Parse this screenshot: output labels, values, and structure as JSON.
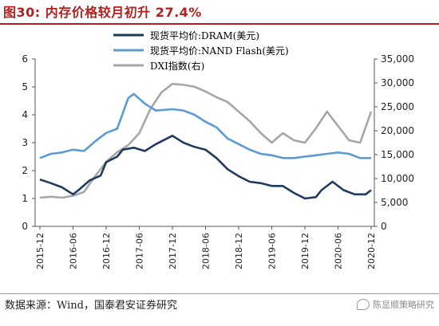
{
  "title": "图30: 内存价格较月初升 27.4%",
  "source": "数据来源：Wind，国泰君安证券研究",
  "watermark": "陈显顺策略研究",
  "chart_data": {
    "type": "line",
    "x_ticks": [
      "2015-12",
      "2016-06",
      "2016-12",
      "2017-06",
      "2017-12",
      "2018-06",
      "2018-12",
      "2019-06",
      "2019-12",
      "2020-06",
      "2020-12"
    ],
    "ylim_left": [
      0,
      6
    ],
    "yticks_left": [
      0,
      1,
      2,
      3,
      4,
      5,
      6
    ],
    "ylim_right": [
      0,
      35000
    ],
    "yticks_right": [
      "0",
      "5,000",
      "10,000",
      "15,000",
      "20,000",
      "25,000",
      "30,000",
      "35,000"
    ],
    "yticks_right_values": [
      0,
      5000,
      10000,
      15000,
      20000,
      25000,
      30000,
      35000
    ],
    "grid": false,
    "legend_position": "top-center",
    "series": [
      {
        "name": "现货平均价:DRAM(美元)",
        "axis": "left",
        "color": "#1f3a5f",
        "x": [
          "2015-12",
          "2016-02",
          "2016-04",
          "2016-06",
          "2016-07",
          "2016-09",
          "2016-11",
          "2016-12",
          "2017-02",
          "2017-03",
          "2017-05",
          "2017-07",
          "2017-09",
          "2017-10",
          "2017-12",
          "2018-02",
          "2018-04",
          "2018-06",
          "2018-08",
          "2018-10",
          "2018-12",
          "2019-02",
          "2019-04",
          "2019-06",
          "2019-08",
          "2019-10",
          "2019-12",
          "2020-02",
          "2020-03",
          "2020-05",
          "2020-07",
          "2020-09",
          "2020-11",
          "2020-12"
        ],
        "values": [
          1.68,
          1.55,
          1.4,
          1.15,
          1.3,
          1.65,
          1.82,
          2.3,
          2.5,
          2.75,
          2.82,
          2.7,
          2.95,
          3.05,
          3.25,
          3.0,
          2.85,
          2.75,
          2.45,
          2.05,
          1.8,
          1.6,
          1.55,
          1.45,
          1.45,
          1.2,
          1.0,
          1.05,
          1.3,
          1.6,
          1.3,
          1.15,
          1.15,
          1.3
        ]
      },
      {
        "name": "现货平均价:NAND Flash(美元)",
        "axis": "left",
        "color": "#5b9bd5",
        "x": [
          "2015-12",
          "2016-02",
          "2016-04",
          "2016-06",
          "2016-08",
          "2016-10",
          "2016-12",
          "2017-02",
          "2017-04",
          "2017-05",
          "2017-07",
          "2017-09",
          "2017-12",
          "2018-02",
          "2018-04",
          "2018-06",
          "2018-08",
          "2018-10",
          "2018-12",
          "2019-02",
          "2019-04",
          "2019-06",
          "2019-08",
          "2019-10",
          "2019-12",
          "2020-02",
          "2020-04",
          "2020-06",
          "2020-08",
          "2020-10",
          "2020-12"
        ],
        "values": [
          2.45,
          2.6,
          2.65,
          2.75,
          2.7,
          3.05,
          3.35,
          3.5,
          4.6,
          4.75,
          4.4,
          4.15,
          4.2,
          4.15,
          4.0,
          3.75,
          3.55,
          3.15,
          2.95,
          2.75,
          2.6,
          2.55,
          2.45,
          2.45,
          2.5,
          2.55,
          2.6,
          2.65,
          2.6,
          2.45,
          2.45
        ]
      },
      {
        "name": "DXI指数(右)",
        "axis": "right",
        "color": "#a6a6a6",
        "x": [
          "2015-12",
          "2016-02",
          "2016-04",
          "2016-06",
          "2016-08",
          "2016-10",
          "2016-12",
          "2017-02",
          "2017-04",
          "2017-06",
          "2017-08",
          "2017-10",
          "2017-12",
          "2018-02",
          "2018-04",
          "2018-06",
          "2018-08",
          "2018-10",
          "2018-12",
          "2019-02",
          "2019-04",
          "2019-06",
          "2019-08",
          "2019-10",
          "2019-12",
          "2020-02",
          "2020-04",
          "2020-06",
          "2020-08",
          "2020-10",
          "2020-12"
        ],
        "values": [
          6000,
          6200,
          6000,
          6400,
          7200,
          10500,
          13500,
          15500,
          17000,
          19500,
          24500,
          28000,
          29800,
          29600,
          29200,
          28200,
          27000,
          26000,
          24000,
          22000,
          19500,
          17500,
          19500,
          18000,
          17500,
          20500,
          24000,
          21000,
          18000,
          17500,
          24000
        ]
      }
    ]
  }
}
